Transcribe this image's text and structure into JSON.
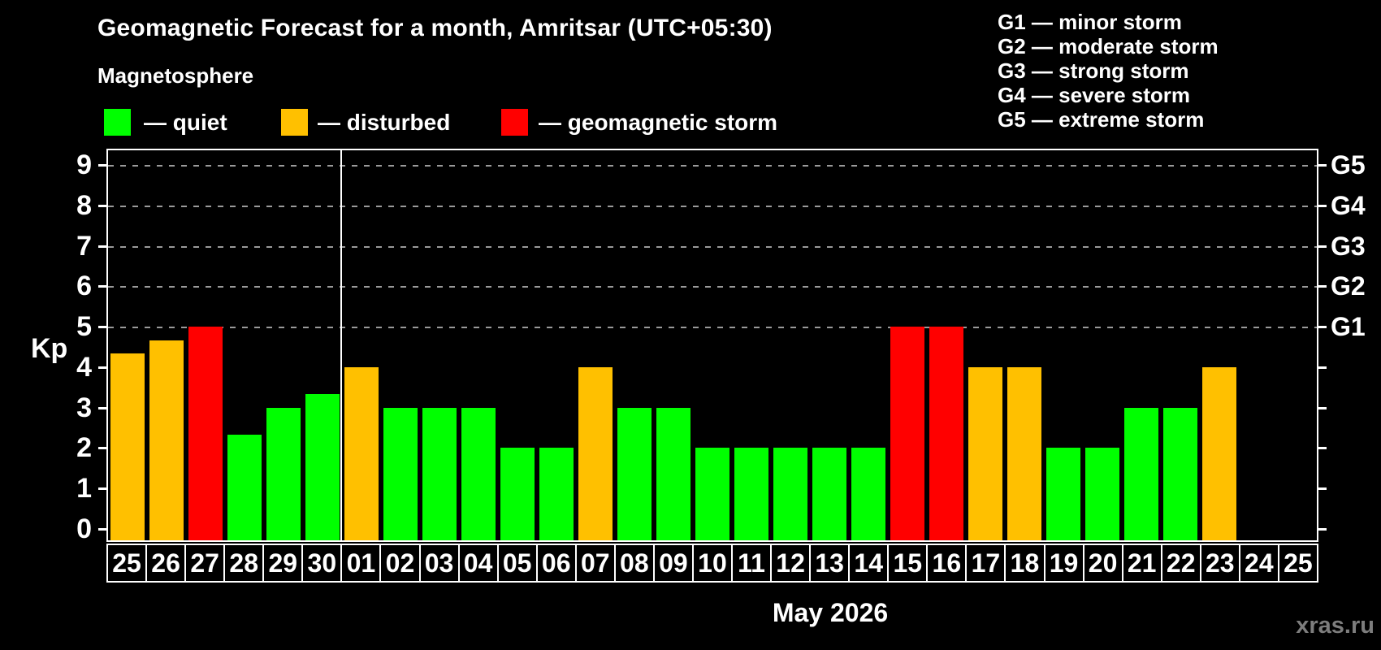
{
  "title": "Geomagnetic Forecast for a month, Amritsar (UTC+05:30)",
  "subtitle": "Magnetosphere",
  "legend": {
    "quiet_label": "— quiet",
    "disturbed_label": "— disturbed",
    "storm_label": "— geomagnetic storm"
  },
  "g_legend": [
    "G1 — minor storm",
    "G2 — moderate storm",
    "G3 — strong storm",
    "G4 — severe storm",
    "G5 — extreme storm"
  ],
  "colors": {
    "quiet": "#00ff00",
    "disturbed": "#ffc000",
    "storm": "#ff0000",
    "grid": "#9a9a9a",
    "watermark": "#7d7d7d"
  },
  "watermark": "xras.ru",
  "chart_data": {
    "type": "bar",
    "title": "Geomagnetic Forecast for a month, Amritsar (UTC+05:30)",
    "xlabel": "May 2026",
    "ylabel": "Kp",
    "ylim": [
      0,
      9.4
    ],
    "yticks": [
      0,
      1,
      2,
      3,
      4,
      5,
      6,
      7,
      8,
      9
    ],
    "gridlines_at": [
      5,
      6,
      7,
      8,
      9
    ],
    "right_axis_labels": {
      "5": "G1",
      "6": "G2",
      "7": "G3",
      "8": "G4",
      "9": "G5"
    },
    "legend_position": "top-left",
    "grid": "dashed horizontal at storm levels only",
    "categories": [
      "25",
      "26",
      "27",
      "28",
      "29",
      "30",
      "01",
      "02",
      "03",
      "04",
      "05",
      "06",
      "07",
      "08",
      "09",
      "10",
      "11",
      "12",
      "13",
      "14",
      "15",
      "16",
      "17",
      "18",
      "19",
      "20",
      "21",
      "22",
      "23",
      "24",
      "25"
    ],
    "values": [
      4.33,
      4.67,
      5,
      2.33,
      3,
      3.33,
      4,
      3,
      3,
      3,
      2,
      2,
      4,
      3,
      3,
      2,
      2,
      2,
      2,
      2,
      5,
      5,
      4,
      4,
      2,
      2,
      3,
      3,
      4,
      null,
      null
    ],
    "statuses": [
      "disturbed",
      "disturbed",
      "storm",
      "quiet",
      "quiet",
      "quiet",
      "disturbed",
      "quiet",
      "quiet",
      "quiet",
      "quiet",
      "quiet",
      "disturbed",
      "quiet",
      "quiet",
      "quiet",
      "quiet",
      "quiet",
      "quiet",
      "quiet",
      "storm",
      "storm",
      "disturbed",
      "disturbed",
      "quiet",
      "quiet",
      "quiet",
      "quiet",
      "disturbed",
      null,
      null
    ],
    "month_separator_after_index": 5
  }
}
